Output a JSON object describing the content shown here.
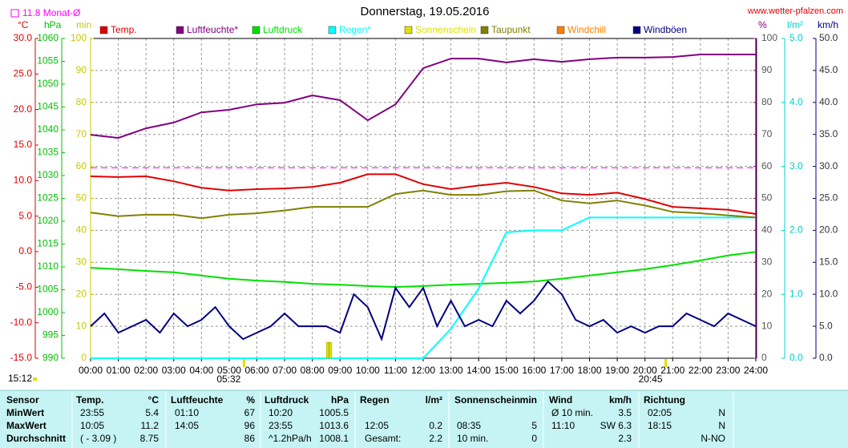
{
  "chart_data": {
    "type": "line",
    "title": "Donnerstag, 19.05.2016",
    "source": "www.wetter-pfalzen.com",
    "grid": true,
    "reference": {
      "label": "11.8 Monat-Ø",
      "value": 11.8,
      "axis": "temp",
      "color": "#ff00ff"
    },
    "xlim": [
      0,
      24
    ],
    "xticks": [
      {
        "value": 0,
        "label": "00:00"
      },
      {
        "value": 1,
        "label": "01:00"
      },
      {
        "value": 2,
        "label": "02:00"
      },
      {
        "value": 3,
        "label": "03:00"
      },
      {
        "value": 4,
        "label": "04:00"
      },
      {
        "value": 5,
        "label": "05:00"
      },
      {
        "value": 6,
        "label": "06:00"
      },
      {
        "value": 7,
        "label": "07:00"
      },
      {
        "value": 8,
        "label": "08:00"
      },
      {
        "value": 9,
        "label": "09:00"
      },
      {
        "value": 10,
        "label": "10:00"
      },
      {
        "value": 11,
        "label": "11:00"
      },
      {
        "value": 12,
        "label": "12:00"
      },
      {
        "value": 13,
        "label": "13:00"
      },
      {
        "value": 14,
        "label": "14:00"
      },
      {
        "value": 15,
        "label": "15:00"
      },
      {
        "value": 16,
        "label": "16:00"
      },
      {
        "value": 17,
        "label": "17:00"
      },
      {
        "value": 18,
        "label": "18:00"
      },
      {
        "value": 19,
        "label": "19:00"
      },
      {
        "value": 20,
        "label": "20:00"
      },
      {
        "value": 21,
        "label": "21:00"
      },
      {
        "value": 22,
        "label": "22:00"
      },
      {
        "value": 23,
        "label": "23:00"
      },
      {
        "value": 24,
        "label": "24:00"
      }
    ],
    "axes": {
      "temp": {
        "title": "°C",
        "color": "#e00000",
        "lim": [
          -15,
          30
        ],
        "ticks": [
          {
            "value": 30,
            "label": "30.0"
          },
          {
            "value": 25,
            "label": "25.0"
          },
          {
            "value": 20,
            "label": "20.0"
          },
          {
            "value": 15,
            "label": "15.0"
          },
          {
            "value": 10,
            "label": "10.0"
          },
          {
            "value": 5,
            "label": "5.0"
          },
          {
            "value": 0,
            "label": "0.0"
          },
          {
            "value": -5,
            "label": "-5.0"
          },
          {
            "value": -10,
            "label": "-10.0"
          },
          {
            "value": -15,
            "label": "-15.0"
          }
        ]
      },
      "press": {
        "title": "hPa",
        "color": "#00c000",
        "lim": [
          990,
          1060
        ],
        "ticks": [
          1060,
          1055,
          1050,
          1045,
          1040,
          1035,
          1030,
          1025,
          1020,
          1015,
          1010,
          1005,
          1000,
          995,
          990
        ]
      },
      "sun": {
        "title": "min",
        "color": "#c8c800",
        "lim": [
          0,
          100
        ],
        "ticks": [
          100,
          90,
          80,
          70,
          60,
          50,
          40,
          30,
          20,
          10,
          0
        ]
      },
      "hum": {
        "title": "%",
        "color": "#800080",
        "lim": [
          0,
          100
        ],
        "ticks": [
          100,
          90,
          80,
          70,
          60,
          50,
          40,
          30,
          20,
          10,
          0
        ]
      },
      "rain": {
        "title": "l/m²",
        "color": "#00d0d0",
        "lim": [
          0,
          5
        ],
        "ticks": [
          {
            "value": 5,
            "label": "5.0"
          },
          {
            "value": 4,
            "label": "4.0"
          },
          {
            "value": 3,
            "label": "3.0"
          },
          {
            "value": 2,
            "label": "2.0"
          },
          {
            "value": 1,
            "label": "1.0"
          },
          {
            "value": 0,
            "label": "0.0"
          }
        ]
      },
      "wind": {
        "title": "km/h",
        "color": "#000080",
        "lim": [
          0,
          50
        ],
        "ticks": [
          {
            "value": 50,
            "label": "50.0"
          },
          {
            "value": 45,
            "label": "45.0"
          },
          {
            "value": 40,
            "label": "40.0"
          },
          {
            "value": 35,
            "label": "35.0"
          },
          {
            "value": 30,
            "label": "30.0"
          },
          {
            "value": 25,
            "label": "25.0"
          },
          {
            "value": 20,
            "label": "20.0"
          },
          {
            "value": 15,
            "label": "15.0"
          },
          {
            "value": 10,
            "label": "10.0"
          },
          {
            "value": 5,
            "label": "5.0"
          },
          {
            "value": 0,
            "label": "0.0"
          }
        ]
      }
    },
    "x": [
      0,
      1,
      2,
      3,
      4,
      5,
      6,
      7,
      8,
      9,
      10,
      11,
      12,
      13,
      14,
      15,
      16,
      17,
      18,
      19,
      20,
      21,
      22,
      23,
      24
    ],
    "series": [
      {
        "name": "Temp.",
        "color": "#e00000",
        "axis": "temp",
        "values": [
          10.6,
          10.5,
          10.6,
          9.9,
          9.0,
          8.6,
          8.8,
          8.9,
          9.1,
          9.7,
          10.9,
          10.9,
          9.5,
          8.8,
          9.3,
          9.7,
          9.1,
          8.2,
          8.0,
          8.3,
          7.4,
          6.3,
          6.1,
          5.9,
          5.3
        ]
      },
      {
        "name": "Luftfeuchte*",
        "color": "#800080",
        "axis": "hum",
        "values": [
          69.9,
          68.9,
          71.9,
          73.7,
          76.9,
          77.7,
          79.4,
          79.9,
          82.2,
          80.7,
          74.4,
          79.4,
          90.7,
          93.7,
          93.7,
          92.5,
          93.5,
          92.7,
          93.5,
          94.0,
          94.0,
          94.2,
          95.0,
          95.0,
          95.0
        ]
      },
      {
        "name": "Luftdruck",
        "color": "#00e000",
        "axis": "press",
        "values": [
          1009.8,
          1009.5,
          1009.1,
          1008.8,
          1008.1,
          1007.4,
          1007.0,
          1006.7,
          1006.3,
          1006.1,
          1005.8,
          1005.6,
          1005.8,
          1006.1,
          1006.3,
          1006.5,
          1006.8,
          1007.4,
          1008.1,
          1008.8,
          1009.5,
          1010.4,
          1011.4,
          1012.5,
          1013.3
        ]
      },
      {
        "name": "Regen*",
        "color": "#00ffff",
        "axis": "rain",
        "values": [
          0,
          0,
          0,
          0,
          0,
          0,
          0,
          0,
          0,
          0,
          0,
          0,
          0,
          0.46,
          1.09,
          1.97,
          2.0,
          2.0,
          2.2,
          2.2,
          2.2,
          2.2,
          2.2,
          2.2,
          2.2
        ]
      },
      {
        "name": "Sonnenschein",
        "color": "#e0e000",
        "axis": "sun",
        "mark": "bar",
        "x": [
          8.55,
          8.65
        ],
        "values": [
          5,
          5
        ]
      },
      {
        "name": "Taupunkt",
        "color": "#808000",
        "axis": "temp",
        "values": [
          5.5,
          5.0,
          5.2,
          5.2,
          4.7,
          5.2,
          5.4,
          5.8,
          6.3,
          6.3,
          6.3,
          8.1,
          8.6,
          8.0,
          8.0,
          8.5,
          8.6,
          7.2,
          6.8,
          7.2,
          6.5,
          5.6,
          5.4,
          5.1,
          4.8
        ]
      },
      {
        "name": "Windchill",
        "color": "#ff8000",
        "axis": "temp"
      },
      {
        "name": "Windböen",
        "color": "#000080",
        "axis": "wind",
        "x": [
          0,
          0.5,
          1,
          1.5,
          2,
          2.5,
          3,
          3.5,
          4,
          4.5,
          5,
          5.5,
          6,
          6.5,
          7,
          7.5,
          8,
          8.5,
          9,
          9.5,
          10,
          10.5,
          11,
          11.5,
          12,
          12.5,
          13,
          13.5,
          14,
          14.5,
          15,
          15.5,
          16,
          16.5,
          17,
          17.5,
          18,
          18.5,
          19,
          19.5,
          20,
          20.5,
          21,
          21.5,
          22,
          22.5,
          23,
          23.5,
          24
        ],
        "values": [
          5,
          7,
          4,
          5,
          6,
          4,
          7,
          5,
          6,
          8,
          5,
          3,
          4,
          5,
          7,
          5,
          5,
          5,
          4,
          10,
          8,
          3,
          11,
          8,
          11,
          5,
          9,
          5,
          6,
          5,
          9,
          7,
          9,
          12,
          10,
          6,
          5,
          6,
          4,
          5,
          4,
          5,
          5,
          7,
          6,
          5,
          7,
          6,
          5
        ]
      }
    ],
    "annotations": [
      {
        "label": "05:32",
        "x": 5.533
      },
      {
        "label": "20:45",
        "x": 20.75
      }
    ],
    "current_time": "15:12"
  },
  "table": {
    "header": [
      "Sensor",
      "Temp.",
      "°C",
      "Luftfeuchte",
      "%",
      "Luftdruck",
      "hPa",
      "Regen",
      "l/m²",
      "Sonnenschein",
      "min",
      "Wind",
      "km/h",
      "Richtung"
    ],
    "rows": [
      [
        "MinWert",
        "23:55",
        "5.4",
        "01:10",
        "67",
        "10:20",
        "1005.5",
        null,
        null,
        null,
        null,
        "Ø 10 min.",
        "3.5",
        "02:05",
        "N"
      ],
      [
        "MaxWert",
        "10:05",
        "11.2",
        "14:05",
        "96",
        "23:55",
        "1013.6",
        "12:05",
        "0.2",
        "08:35",
        "5",
        "11:10",
        "SW 6.3",
        "18:15",
        "N"
      ],
      [
        "Durchschnitt",
        "( - 3.09 )",
        "8.75",
        null,
        "86",
        "^1.2hPa/h",
        "1008.1",
        "Gesamt:",
        "2.2",
        "10 min.",
        "0",
        null,
        "2.3",
        null,
        "N-NO"
      ]
    ]
  }
}
